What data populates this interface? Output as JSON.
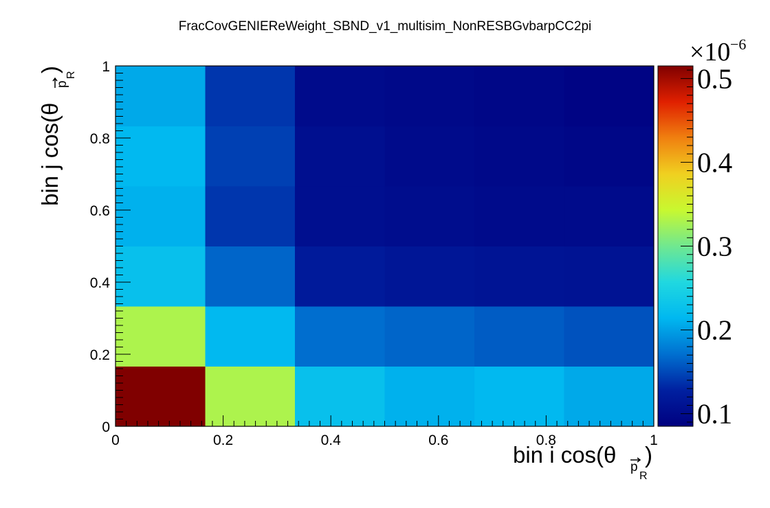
{
  "chart_data": {
    "type": "heatmap",
    "title": "FracCovGENIEReWeight_SBND_v1_multisim_NonRESBGvbarpCC2pi",
    "xlabel": {
      "main": "bin i cos(θ",
      "arrow_sub": "p",
      "sub": "R",
      "close": ")"
    },
    "ylabel": {
      "main": "bin j cos(θ",
      "arrow_sub": "p",
      "sub": "R",
      "close": ")"
    },
    "x_edges": [
      0,
      0.1667,
      0.3333,
      0.5,
      0.6667,
      0.8333,
      1.0
    ],
    "y_edges": [
      0,
      0.1667,
      0.3333,
      0.5,
      0.6667,
      0.8333,
      1.0
    ],
    "xlim": [
      0,
      1
    ],
    "ylim": [
      0,
      1
    ],
    "x_ticks": [
      "0",
      "0.2",
      "0.4",
      "0.6",
      "0.8",
      "1"
    ],
    "y_ticks": [
      "0",
      "0.2",
      "0.4",
      "0.6",
      "0.8",
      "1"
    ],
    "z_multiplier_base": "×10",
    "z_multiplier_exp": "−6",
    "z_range": [
      0.085,
      0.515
    ],
    "z_ticks": [
      "0.1",
      "0.2",
      "0.3",
      "0.4",
      "0.5"
    ],
    "z_values_rows_bottom_to_top": [
      [
        0.515,
        0.33,
        0.225,
        0.21,
        0.215,
        0.205
      ],
      [
        0.33,
        0.215,
        0.17,
        0.165,
        0.16,
        0.155
      ],
      [
        0.225,
        0.165,
        0.12,
        0.115,
        0.112,
        0.11
      ],
      [
        0.21,
        0.14,
        0.105,
        0.102,
        0.1,
        0.1
      ],
      [
        0.215,
        0.145,
        0.105,
        0.1,
        0.097,
        0.095
      ],
      [
        0.205,
        0.14,
        0.1,
        0.097,
        0.095,
        0.09
      ]
    ]
  }
}
